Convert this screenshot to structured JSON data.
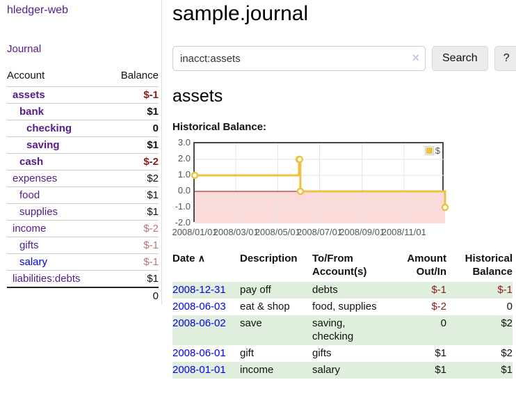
{
  "app": {
    "title": "hledger-web"
  },
  "sidebar": {
    "journal_link": "Journal",
    "accounts": {
      "headers": {
        "account": "Account",
        "balance": "Balance"
      },
      "rows": [
        {
          "account": "assets",
          "balance": "$-1",
          "indent": 1,
          "bold": true,
          "link": "purple",
          "balance_style": "neg b"
        },
        {
          "account": "bank",
          "balance": "$1",
          "indent": 2,
          "bold": true,
          "link": "purple",
          "balance_style": "b"
        },
        {
          "account": "checking",
          "balance": "0",
          "indent": 3,
          "bold": true,
          "link": "purple",
          "balance_style": "b"
        },
        {
          "account": "saving",
          "balance": "$1",
          "indent": 3,
          "bold": true,
          "link": "purple",
          "balance_style": "b"
        },
        {
          "account": "cash",
          "balance": "$-2",
          "indent": 2,
          "bold": true,
          "link": "purple",
          "balance_style": "neg b"
        },
        {
          "account": "expenses",
          "balance": "$2",
          "indent": 1,
          "bold": false,
          "link": "purple",
          "balance_style": ""
        },
        {
          "account": "food",
          "balance": "$1",
          "indent": 2,
          "bold": false,
          "link": "purple",
          "balance_style": ""
        },
        {
          "account": "supplies",
          "balance": "$1",
          "indent": 2,
          "bold": false,
          "link": "purple",
          "balance_style": ""
        },
        {
          "account": "income",
          "balance": "$-2",
          "indent": 1,
          "bold": false,
          "link": "purple",
          "balance_style": "dim"
        },
        {
          "account": "gifts",
          "balance": "$-1",
          "indent": 2,
          "bold": false,
          "link": "purple",
          "balance_style": "dim"
        },
        {
          "account": "salary",
          "balance": "$-1",
          "indent": 2,
          "bold": false,
          "link": "blue",
          "balance_style": "dim"
        },
        {
          "account": "liabilities:debts",
          "balance": "$1",
          "indent": 1,
          "bold": false,
          "link": "purple",
          "balance_style": ""
        }
      ],
      "total": "0"
    }
  },
  "header": {
    "title": "sample.journal"
  },
  "search": {
    "value": "inacct:assets",
    "clear_icon": "×",
    "button_label": "Search",
    "help_label": "?"
  },
  "account_page": {
    "title": "assets",
    "chart_label": "Historical Balance:"
  },
  "chart_data": {
    "type": "line",
    "step": true,
    "title": "Historical Balance:",
    "xlim": [
      "2008-01-01",
      "2008-12-31"
    ],
    "ylim": [
      -2,
      3
    ],
    "x_ticks": [
      {
        "date": "2008-01-01",
        "label": "2008/01/01"
      },
      {
        "date": "2008-03-01",
        "label": "2008/03/01"
      },
      {
        "date": "2008-05-01",
        "label": "2008/05/01"
      },
      {
        "date": "2008-07-01",
        "label": "2008/07/01"
      },
      {
        "date": "2008-09-01",
        "label": "2008/09/01"
      },
      {
        "date": "2008-11-01",
        "label": "2008/11/01"
      }
    ],
    "y_ticks": [
      {
        "value": 3,
        "label": "3.0"
      },
      {
        "value": 2,
        "label": "2.0"
      },
      {
        "value": 1,
        "label": "1.0"
      },
      {
        "value": 0,
        "label": "0.0"
      },
      {
        "value": -1,
        "label": "-1.0"
      },
      {
        "value": -2,
        "label": "-2.0"
      }
    ],
    "series": [
      {
        "name": "$",
        "points": [
          {
            "date": "2008-01-01",
            "value": 1
          },
          {
            "date": "2008-06-01",
            "value": 2
          },
          {
            "date": "2008-06-02",
            "value": 2
          },
          {
            "date": "2008-06-03",
            "value": 0
          },
          {
            "date": "2008-12-31",
            "value": -1
          }
        ]
      }
    ],
    "legend": {
      "label": "$",
      "position": "top-right"
    },
    "colors": {
      "series": "#edc240",
      "zero_line": "#a40000",
      "negative_region": "#fbdada",
      "grid": "#e5e5e5",
      "border": "#4a4a4a"
    }
  },
  "register": {
    "headers": {
      "date": "Date",
      "sort_icon": "∧",
      "description": "Description",
      "account": "To/From Account(s)",
      "amount": "Amount Out/In",
      "balance": "Historical Balance"
    },
    "rows": [
      {
        "date": "2008-12-31",
        "description": "pay off",
        "accounts": "debts",
        "amount": "$-1",
        "balance": "$-1"
      },
      {
        "date": "2008-06-03",
        "description": "eat & shop",
        "accounts": "food, supplies",
        "amount": "$-2",
        "balance": "0"
      },
      {
        "date": "2008-06-02",
        "description": "save",
        "accounts": "saving,\nchecking",
        "amount": "0",
        "balance": "$2"
      },
      {
        "date": "2008-06-01",
        "description": "gift",
        "accounts": "gifts",
        "amount": "$1",
        "balance": "$2"
      },
      {
        "date": "2008-01-01",
        "description": "income",
        "accounts": "salary",
        "amount": "$1",
        "balance": "$1"
      }
    ]
  }
}
